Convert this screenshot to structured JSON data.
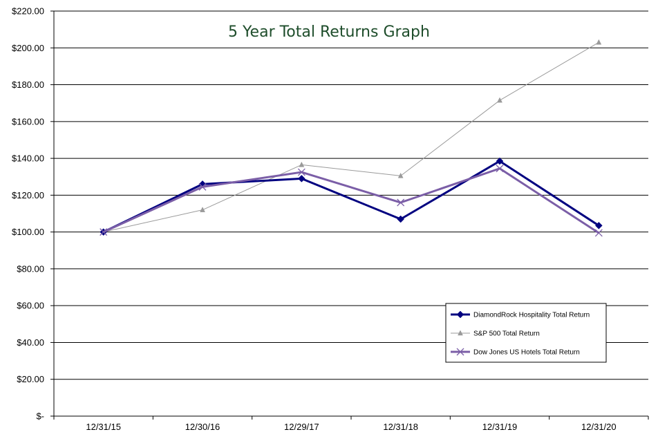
{
  "chart_data": {
    "type": "line",
    "title": "5 Year Total Returns Graph",
    "xlabel": "",
    "ylabel": "",
    "categories": [
      "12/31/15",
      "12/30/16",
      "12/29/17",
      "12/31/18",
      "12/31/19",
      "12/31/20"
    ],
    "y_tick_labels": [
      "$-",
      "$20.00",
      "$40.00",
      "$60.00",
      "$80.00",
      "$100.00",
      "$120.00",
      "$140.00",
      "$160.00",
      "$180.00",
      "$200.00",
      "$220.00"
    ],
    "ylim": [
      0,
      220
    ],
    "y_step": 20,
    "grid": "horizontal",
    "legend_position": "bottom-right",
    "series": [
      {
        "name": "DiamondRock Hospitality Total Return",
        "values": [
          100,
          126,
          129,
          107,
          138.5,
          103.5
        ],
        "color": "#000080",
        "marker": "diamond"
      },
      {
        "name": "S&P 500 Total Return",
        "values": [
          100,
          112,
          136.5,
          130.5,
          171.5,
          203
        ],
        "color": "#9a9a9a",
        "marker": "triangle"
      },
      {
        "name": "Dow Jones US Hotels Total Return",
        "values": [
          100,
          124.5,
          132.5,
          116,
          134.5,
          99.5
        ],
        "color": "#7b5ea7",
        "marker": "x"
      }
    ]
  }
}
